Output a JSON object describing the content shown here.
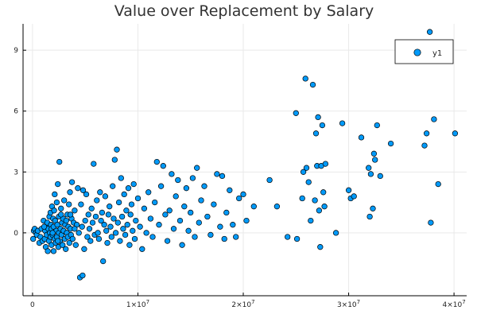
{
  "chart_data": {
    "type": "scatter",
    "title": "Value over Replacement by Salary",
    "xlabel": "",
    "ylabel": "",
    "xlim": [
      -900000,
      41200000
    ],
    "ylim": [
      -3.1,
      10.3
    ],
    "xticks": [
      {
        "value": 0,
        "mantissa": "0",
        "exp": ""
      },
      {
        "value": 10000000,
        "mantissa": "1×10",
        "exp": "7"
      },
      {
        "value": 20000000,
        "mantissa": "2×10",
        "exp": "7"
      },
      {
        "value": 30000000,
        "mantissa": "3×10",
        "exp": "7"
      },
      {
        "value": 40000000,
        "mantissa": "4×10",
        "exp": "7"
      }
    ],
    "yticks": [
      0,
      3,
      6,
      9
    ],
    "grid": true,
    "legend": {
      "position": "top-right",
      "entries": [
        "y1"
      ]
    },
    "series": [
      {
        "name": "y1",
        "color": "#009af9",
        "points": [
          [
            60000,
            -0.3
          ],
          [
            120000,
            0.1
          ],
          [
            200000,
            0.2
          ],
          [
            330000,
            0.0
          ],
          [
            400000,
            -0.1
          ],
          [
            500000,
            0.1
          ],
          [
            650000,
            -0.5
          ],
          [
            750000,
            -0.2
          ],
          [
            850000,
            0.2
          ],
          [
            950000,
            -0.4
          ],
          [
            1050000,
            0.6
          ],
          [
            1150000,
            -0.3
          ],
          [
            1200000,
            0.1
          ],
          [
            1250000,
            -0.7
          ],
          [
            1300000,
            0.3
          ],
          [
            1350000,
            -0.1
          ],
          [
            1400000,
            0.5
          ],
          [
            1450000,
            -0.9
          ],
          [
            1500000,
            0.2
          ],
          [
            1550000,
            -0.4
          ],
          [
            1600000,
            0.8
          ],
          [
            1650000,
            0.0
          ],
          [
            1700000,
            1.0
          ],
          [
            1700000,
            -0.2
          ],
          [
            1750000,
            0.4
          ],
          [
            1800000,
            -0.6
          ],
          [
            1800000,
            0.2
          ],
          [
            1850000,
            1.3
          ],
          [
            1900000,
            -0.1
          ],
          [
            1950000,
            0.7
          ],
          [
            2000000,
            -0.9
          ],
          [
            2000000,
            0.3
          ],
          [
            2050000,
            1.1
          ],
          [
            2100000,
            -0.3
          ],
          [
            2150000,
            0.6
          ],
          [
            2200000,
            -0.5
          ],
          [
            2250000,
            0.1
          ],
          [
            2300000,
            1.5
          ],
          [
            2300000,
            -0.2
          ],
          [
            2350000,
            0.4
          ],
          [
            2400000,
            2.4
          ],
          [
            2450000,
            -0.7
          ],
          [
            2500000,
            0.8
          ],
          [
            2500000,
            0.0
          ],
          [
            2550000,
            3.5
          ],
          [
            2600000,
            -0.4
          ],
          [
            2650000,
            0.2
          ],
          [
            2700000,
            1.2
          ],
          [
            2750000,
            -0.1
          ],
          [
            2800000,
            0.5
          ],
          [
            2850000,
            -0.6
          ],
          [
            2900000,
            0.7
          ],
          [
            2950000,
            0.1
          ],
          [
            3000000,
            1.6
          ],
          [
            3050000,
            -0.3
          ],
          [
            3100000,
            0.4
          ],
          [
            3150000,
            -0.8
          ],
          [
            3200000,
            0.6
          ],
          [
            3250000,
            0.0
          ],
          [
            3300000,
            0.9
          ],
          [
            3350000,
            -0.2
          ],
          [
            3400000,
            0.3
          ],
          [
            3450000,
            1.4
          ],
          [
            3500000,
            -0.5
          ],
          [
            3550000,
            2.0
          ],
          [
            3600000,
            0.2
          ],
          [
            3650000,
            -0.1
          ],
          [
            3700000,
            0.7
          ],
          [
            3750000,
            2.5
          ],
          [
            3800000,
            -0.3
          ],
          [
            3900000,
            0.5
          ],
          [
            4000000,
            1.1
          ],
          [
            4100000,
            -0.6
          ],
          [
            4200000,
            0.4
          ],
          [
            4300000,
            2.2
          ],
          [
            4400000,
            0.0
          ],
          [
            4500000,
            -2.2
          ],
          [
            4600000,
            1.4
          ],
          [
            4700000,
            0.3
          ],
          [
            4750000,
            -2.1
          ],
          [
            4800000,
            2.1
          ],
          [
            4900000,
            -0.8
          ],
          [
            5000000,
            0.6
          ],
          [
            5100000,
            1.9
          ],
          [
            5200000,
            -0.2
          ],
          [
            5300000,
            0.9
          ],
          [
            5400000,
            0.2
          ],
          [
            5500000,
            -0.4
          ],
          [
            5600000,
            1.2
          ],
          [
            5700000,
            0.5
          ],
          [
            5800000,
            3.4
          ],
          [
            5900000,
            -0.1
          ],
          [
            6000000,
            0.8
          ],
          [
            6100000,
            1.6
          ],
          [
            6200000,
            0.0
          ],
          [
            6300000,
            -0.3
          ],
          [
            6400000,
            2.0
          ],
          [
            6500000,
            0.6
          ],
          [
            6600000,
            1.0
          ],
          [
            6700000,
            -1.4
          ],
          [
            6800000,
            0.4
          ],
          [
            6900000,
            1.8
          ],
          [
            7000000,
            0.1
          ],
          [
            7100000,
            -0.5
          ],
          [
            7200000,
            0.9
          ],
          [
            7300000,
            1.3
          ],
          [
            7400000,
            0.3
          ],
          [
            7500000,
            -0.2
          ],
          [
            7600000,
            2.3
          ],
          [
            7700000,
            0.7
          ],
          [
            7800000,
            3.6
          ],
          [
            7900000,
            0.0
          ],
          [
            8000000,
            4.1
          ],
          [
            8100000,
            0.5
          ],
          [
            8200000,
            1.5
          ],
          [
            8300000,
            -0.4
          ],
          [
            8400000,
            2.7
          ],
          [
            8500000,
            0.8
          ],
          [
            8600000,
            0.2
          ],
          [
            8700000,
            1.9
          ],
          [
            8800000,
            -0.1
          ],
          [
            8900000,
            1.1
          ],
          [
            9000000,
            0.4
          ],
          [
            9100000,
            2.2
          ],
          [
            9200000,
            -0.6
          ],
          [
            9300000,
            0.9
          ],
          [
            9400000,
            1.4
          ],
          [
            9500000,
            0.1
          ],
          [
            9600000,
            2.4
          ],
          [
            9700000,
            -0.3
          ],
          [
            9800000,
            0.6
          ],
          [
            10000000,
            1.7
          ],
          [
            10200000,
            0.3
          ],
          [
            10400000,
            -0.8
          ],
          [
            10600000,
            1.2
          ],
          [
            10800000,
            0.0
          ],
          [
            11000000,
            2.0
          ],
          [
            11200000,
            0.7
          ],
          [
            11400000,
            -0.2
          ],
          [
            11600000,
            1.5
          ],
          [
            11800000,
            3.5
          ],
          [
            12000000,
            0.4
          ],
          [
            12200000,
            2.3
          ],
          [
            12400000,
            3.3
          ],
          [
            12600000,
            0.9
          ],
          [
            12800000,
            -0.4
          ],
          [
            13000000,
            1.1
          ],
          [
            13200000,
            2.9
          ],
          [
            13400000,
            0.2
          ],
          [
            13600000,
            1.8
          ],
          [
            13800000,
            2.6
          ],
          [
            14000000,
            0.6
          ],
          [
            14200000,
            -0.6
          ],
          [
            14400000,
            1.3
          ],
          [
            14600000,
            2.2
          ],
          [
            14800000,
            0.1
          ],
          [
            15000000,
            1.0
          ],
          [
            15200000,
            2.7
          ],
          [
            15400000,
            -0.2
          ],
          [
            15600000,
            3.2
          ],
          [
            15800000,
            0.5
          ],
          [
            16000000,
            1.6
          ],
          [
            16300000,
            2.3
          ],
          [
            16600000,
            0.8
          ],
          [
            16900000,
            -0.1
          ],
          [
            17200000,
            1.4
          ],
          [
            17500000,
            2.9
          ],
          [
            17800000,
            0.3
          ],
          [
            18000000,
            2.8
          ],
          [
            18200000,
            -0.3
          ],
          [
            18400000,
            1.0
          ],
          [
            18700000,
            2.1
          ],
          [
            19000000,
            0.4
          ],
          [
            19300000,
            -0.2
          ],
          [
            19600000,
            1.7
          ],
          [
            20000000,
            1.9
          ],
          [
            20300000,
            0.6
          ],
          [
            21000000,
            1.3
          ],
          [
            22500000,
            2.6
          ],
          [
            23200000,
            1.3
          ],
          [
            24200000,
            -0.2
          ],
          [
            25000000,
            5.9
          ],
          [
            25100000,
            -0.3
          ],
          [
            25600000,
            1.7
          ],
          [
            25700000,
            3.0
          ],
          [
            25900000,
            7.6
          ],
          [
            26000000,
            3.2
          ],
          [
            26200000,
            2.5
          ],
          [
            26400000,
            0.6
          ],
          [
            26600000,
            7.3
          ],
          [
            26800000,
            1.6
          ],
          [
            26900000,
            4.9
          ],
          [
            27000000,
            3.3
          ],
          [
            27100000,
            5.7
          ],
          [
            27200000,
            1.1
          ],
          [
            27300000,
            -0.7
          ],
          [
            27400000,
            3.3
          ],
          [
            27500000,
            5.3
          ],
          [
            27600000,
            2.0
          ],
          [
            27700000,
            1.3
          ],
          [
            27800000,
            3.4
          ],
          [
            28800000,
            0.0
          ],
          [
            29400000,
            5.4
          ],
          [
            30000000,
            2.1
          ],
          [
            30200000,
            1.7
          ],
          [
            30500000,
            1.8
          ],
          [
            31200000,
            4.7
          ],
          [
            31900000,
            3.2
          ],
          [
            32000000,
            0.8
          ],
          [
            32100000,
            2.9
          ],
          [
            32300000,
            1.2
          ],
          [
            32400000,
            3.9
          ],
          [
            32500000,
            3.6
          ],
          [
            32700000,
            5.3
          ],
          [
            33000000,
            2.8
          ],
          [
            34000000,
            4.4
          ],
          [
            37200000,
            4.3
          ],
          [
            37400000,
            4.9
          ],
          [
            37800000,
            0.5
          ],
          [
            38100000,
            5.6
          ],
          [
            38500000,
            2.4
          ],
          [
            37700000,
            9.9
          ],
          [
            40100000,
            4.9
          ],
          [
            2700000,
            0.9
          ],
          [
            1900000,
            0.0
          ],
          [
            2400000,
            -0.4
          ],
          [
            3600000,
            0.9
          ],
          [
            4000000,
            0.2
          ],
          [
            1100000,
            0.3
          ],
          [
            2100000,
            1.9
          ]
        ]
      }
    ]
  }
}
